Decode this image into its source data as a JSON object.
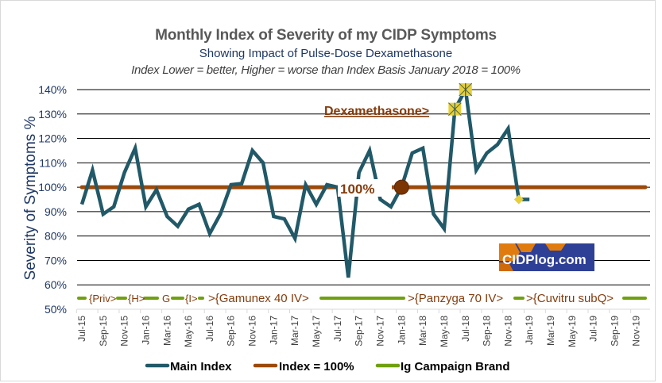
{
  "chart_data": {
    "type": "line",
    "title": "Monthly Index of Severity of my CIDP Symptoms",
    "subtitle": "Showing Impact of Pulse-Dose Dexamethasone",
    "subtitle2": "Index Lower = better, Higher = worse  than Index Basis January 2018 = 100%",
    "ylabel": "Severity of Symptoms  %",
    "xlabel": "",
    "ylim": [
      50,
      140
    ],
    "yticks": [
      "50%",
      "60%",
      "70%",
      "80%",
      "90%",
      "100%",
      "110%",
      "120%",
      "130%",
      "140%"
    ],
    "grid": true,
    "x_months": [
      "Jul-15",
      "Aug-15",
      "Sep-15",
      "Oct-15",
      "Nov-15",
      "Dec-15",
      "Jan-16",
      "Feb-16",
      "Mar-16",
      "Apr-16",
      "May-16",
      "Jun-16",
      "Jul-16",
      "Aug-16",
      "Sep-16",
      "Oct-16",
      "Nov-16",
      "Dec-16",
      "Jan-17",
      "Feb-17",
      "Mar-17",
      "Apr-17",
      "May-17",
      "Jun-17",
      "Jul-17",
      "Aug-17",
      "Sep-17",
      "Oct-17",
      "Nov-17",
      "Dec-17",
      "Jan-18",
      "Feb-18",
      "Mar-18",
      "Apr-18",
      "May-18",
      "Jun-18",
      "Jul-18",
      "Aug-18",
      "Sep-18",
      "Oct-18",
      "Nov-18",
      "Dec-18",
      "Jan-19",
      "Feb-19",
      "Mar-19",
      "Apr-19",
      "May-19",
      "Jun-19",
      "Jul-19",
      "Aug-19",
      "Sep-19",
      "Oct-19",
      "Nov-19"
    ],
    "x_tick_labels": [
      "Jul-15",
      "Sep-15",
      "Nov-15",
      "Jan-16",
      "Mar-16",
      "May-16",
      "Jul-16",
      "Sep-16",
      "Nov-16",
      "Jan-17",
      "Mar-17",
      "May-17",
      "Jul-17",
      "Sep-17",
      "Nov-17",
      "Jan-18",
      "Mar-18",
      "May-18",
      "Jul-18",
      "Sep-18",
      "Nov-18",
      "Jan-19",
      "Mar-19",
      "May-19",
      "Jul-19",
      "Sep-19",
      "Nov-19"
    ],
    "series": [
      {
        "name": "Main Index",
        "color": "#215968",
        "values": [
          93,
          107,
          89,
          92,
          106,
          116,
          92,
          99,
          88,
          84,
          91,
          93,
          81,
          89,
          101,
          101.5,
          115,
          110,
          88,
          87,
          79,
          101,
          93,
          101,
          100,
          63,
          106,
          115,
          95,
          92,
          100,
          114,
          116,
          89,
          83,
          132,
          140,
          107,
          114,
          117.5,
          124,
          95,
          95
        ]
      },
      {
        "name": "Index = 100%",
        "color": "#9c4a0a",
        "value": 100
      },
      {
        "name": "Ig Campaign Brand",
        "color": "#70a010"
      }
    ],
    "highlight_points": [
      {
        "month": "Jun-18",
        "value": 132,
        "marker": "yellow-square-x"
      },
      {
        "month": "Jul-18",
        "value": 140,
        "marker": "yellow-square-x"
      },
      {
        "month": "Dec-18",
        "value": 95,
        "marker": "yellow-diamond"
      }
    ],
    "basis_point": {
      "month": "Jan-18",
      "value": 100
    },
    "annotations": [
      {
        "text": "Dexamethasone>",
        "color": "#843c0c"
      },
      {
        "text": "100%",
        "color": "#843c0c"
      }
    ],
    "campaign_labels": [
      "{Priv>",
      "{H>",
      "G",
      "{I>",
      ">{Gamunex  40 IV>",
      ">{Panzyga  70 IV>",
      ">{Cuvitru  subQ>"
    ],
    "legend": [
      "Main Index",
      "Index = 100%",
      "Ig Campaign Brand"
    ],
    "legend_position": "bottom"
  },
  "logo": {
    "text": "CIDPlog.com"
  },
  "colors": {
    "main": "#215968",
    "baseline": "#9c4a0a",
    "campaign": "#70a010",
    "highlight": "#e6cf3a",
    "logo_bg": "#2e3f96",
    "logo_accent": "#e07b10"
  }
}
